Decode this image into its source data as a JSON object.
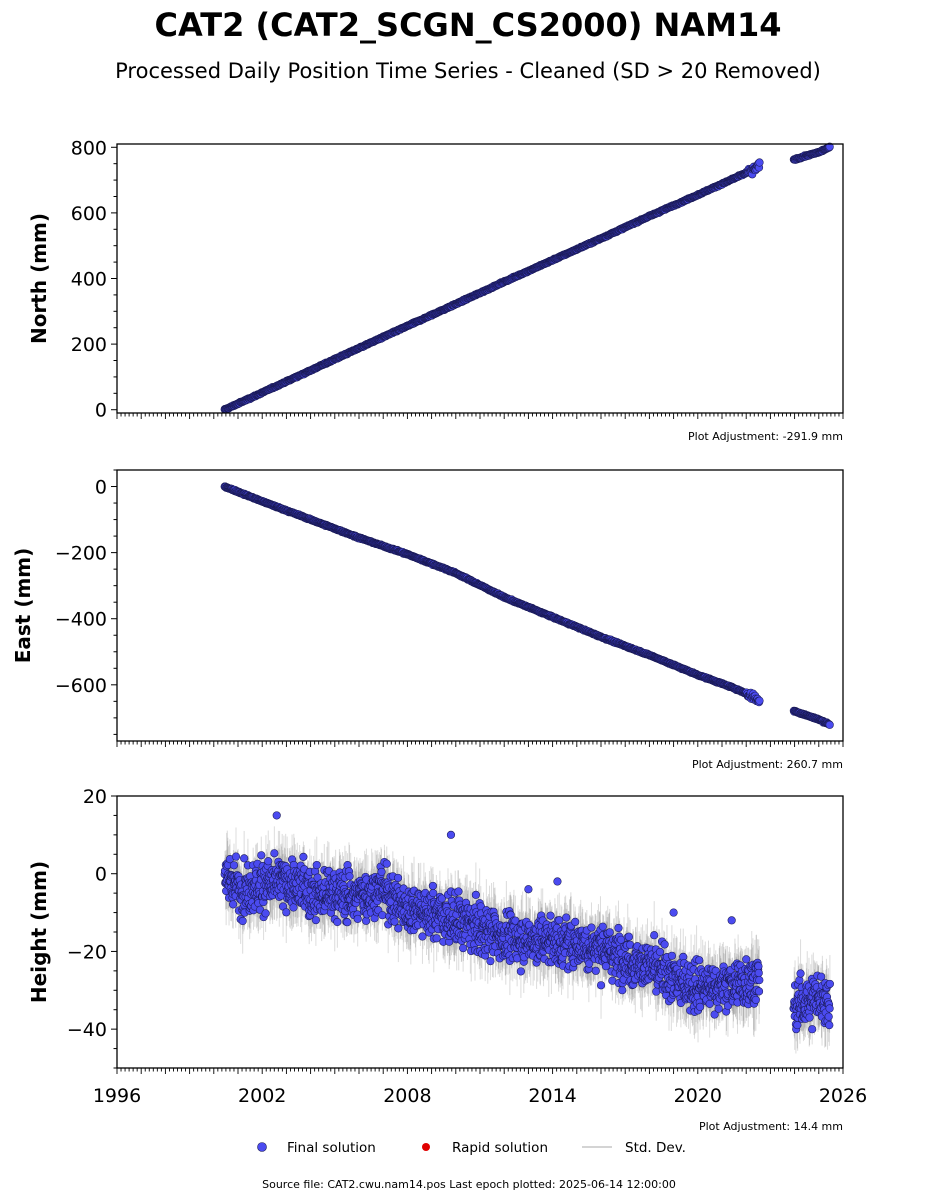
{
  "title": "CAT2 (CAT2_SCGN_CS2000) NAM14",
  "subtitle": "Processed Daily Position Time Series - Cleaned (SD > 20 Removed)",
  "legend": {
    "final": "Final solution",
    "rapid": "Rapid solution",
    "std": "Std. Dev."
  },
  "footer": "Source file: CAT2.cwu.nam14.pos  Last epoch plotted: 2025-06-14 12:00:00",
  "colors": {
    "final": "#4b4bf0",
    "rapid": "#e00000",
    "std": "#808080",
    "edge": "#1a1a55"
  },
  "chart_data": [
    {
      "type": "scatter",
      "ylabel": "North (mm)",
      "adjustment": "Plot Adjustment: -291.9 mm",
      "xlim": [
        1996,
        2026
      ],
      "ylim": [
        -10,
        810
      ],
      "yticks": [
        "0",
        "200",
        "400",
        "600",
        "800"
      ],
      "ytick_values": [
        0,
        200,
        400,
        600,
        800
      ],
      "xticks": [],
      "series": [
        {
          "values_x": [
            2000.45,
            2002.0,
            2004.0,
            2006.0,
            2008.0,
            2010.0,
            2012.0,
            2014.0,
            2016.0,
            2018.0,
            2020.0,
            2021.5,
            2022.4,
            2022.5,
            2024.0,
            2025.0,
            2025.45
          ],
          "values_y": [
            0,
            52,
            120,
            188,
            255,
            322,
            390,
            456,
            522,
            590,
            655,
            705,
            735,
            740,
            763,
            785,
            800
          ]
        }
      ]
    },
    {
      "type": "scatter",
      "ylabel": "East (mm)",
      "adjustment": "Plot Adjustment: 260.7 mm",
      "xlim": [
        1996,
        2026
      ],
      "ylim": [
        -770,
        50
      ],
      "yticks": [
        "0",
        "−200",
        "−400",
        "−600"
      ],
      "ytick_values": [
        0,
        -200,
        -400,
        -600
      ],
      "xticks": [],
      "series": [
        {
          "values_x": [
            2000.45,
            2002.0,
            2004.0,
            2006.0,
            2008.0,
            2010.0,
            2012.0,
            2014.0,
            2016.0,
            2018.0,
            2020.0,
            2021.5,
            2022.4,
            2022.5,
            2024.0,
            2025.0,
            2025.45
          ],
          "values_y": [
            0,
            -45,
            -100,
            -155,
            -205,
            -262,
            -335,
            -395,
            -455,
            -510,
            -570,
            -610,
            -640,
            -650,
            -680,
            -705,
            -720
          ]
        }
      ]
    },
    {
      "type": "scatter",
      "ylabel": "Height (mm)",
      "adjustment": "Plot Adjustment: 14.4 mm",
      "xlim": [
        1996,
        2026
      ],
      "ylim": [
        -50,
        20
      ],
      "yticks": [
        "20",
        "0",
        "−20",
        "−40"
      ],
      "ytick_values": [
        20,
        0,
        -20,
        -40
      ],
      "xticks": [
        "1996",
        "2002",
        "2008",
        "2014",
        "2020",
        "2026"
      ],
      "xtick_values": [
        1996,
        2002,
        2008,
        2014,
        2020,
        2026
      ],
      "series": [
        {
          "values_x": [
            2000.4,
            2001.0,
            2002.0,
            2003.0,
            2004.0,
            2005.0,
            2006.0,
            2007.0,
            2008.0,
            2009.0,
            2010.0,
            2011.0,
            2012.0,
            2013.0,
            2014.0,
            2015.0,
            2016.0,
            2017.0,
            2018.0,
            2019.0,
            2020.0,
            2021.0,
            2022.0,
            2022.4,
            2024.0,
            2024.5,
            2025.0,
            2025.45
          ],
          "values_y": [
            0,
            -4,
            -3,
            -2,
            -5,
            -5,
            -6,
            -4,
            -9,
            -10,
            -12,
            -14,
            -16,
            -17,
            -17,
            -18,
            -19,
            -22,
            -24,
            -27,
            -29,
            -29,
            -28,
            -27,
            -34,
            -33,
            -32,
            -33
          ]
        }
      ],
      "outliers": [
        {
          "x": 2002.6,
          "y": 15
        },
        {
          "x": 2009.8,
          "y": 10
        },
        {
          "x": 2019.0,
          "y": -10
        },
        {
          "x": 2021.4,
          "y": -12
        },
        {
          "x": 2014.2,
          "y": -2
        },
        {
          "x": 2013.0,
          "y": -4
        }
      ]
    }
  ]
}
